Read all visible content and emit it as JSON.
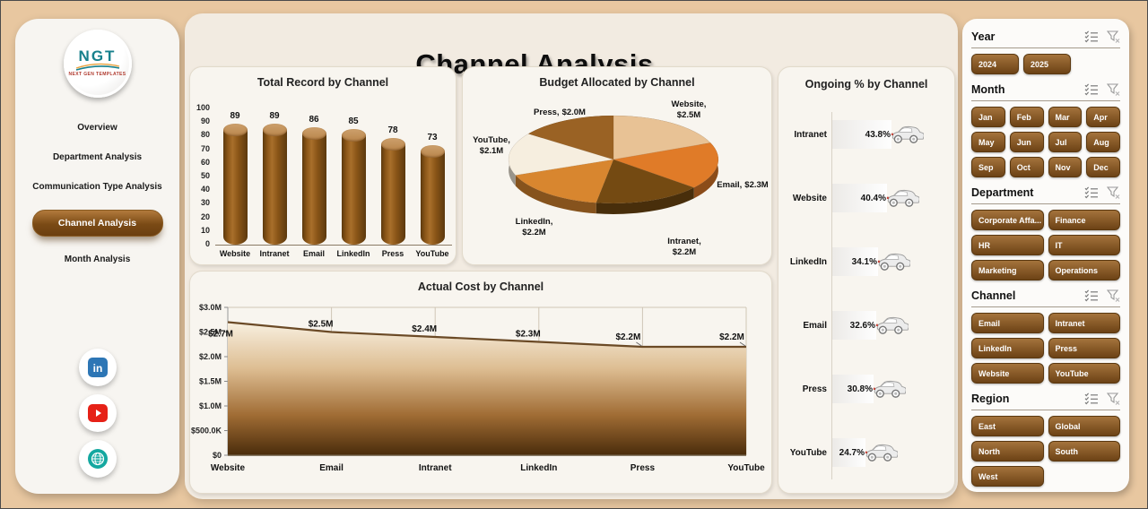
{
  "title": "Channel Analysis",
  "sidebar": {
    "logo_text": "NGT",
    "logo_subtext": "NEXT GEN TEMPLATES",
    "items": [
      {
        "label": "Overview",
        "active": false
      },
      {
        "label": "Department Analysis",
        "active": false
      },
      {
        "label": "Communication Type Analysis",
        "active": false
      },
      {
        "label": "Channel Analysis",
        "active": true
      },
      {
        "label": "Month Analysis",
        "active": false
      }
    ],
    "socials": [
      "linkedin",
      "youtube",
      "website"
    ]
  },
  "chart_data": [
    {
      "type": "bar",
      "title": "Total Record by Channel",
      "categories": [
        "Website",
        "Intranet",
        "Email",
        "LinkedIn",
        "Press",
        "YouTube"
      ],
      "values": [
        89,
        89,
        86,
        85,
        78,
        73
      ],
      "ylim": [
        0,
        100
      ],
      "yticks": [
        100,
        90,
        80,
        70,
        60,
        50,
        40,
        30,
        20,
        10,
        0
      ]
    },
    {
      "type": "pie",
      "title": "Budget Allocated by Channel",
      "slices": [
        {
          "name": "Website",
          "label": "$2.5M",
          "value": 2.5,
          "color": "#e8c295"
        },
        {
          "name": "Email",
          "label": "$2.3M",
          "value": 2.3,
          "color": "#e07b28"
        },
        {
          "name": "Intranet",
          "label": "$2.2M",
          "value": 2.2,
          "color": "#744a12"
        },
        {
          "name": "LinkedIn",
          "label": "$2.2M",
          "value": 2.2,
          "color": "#d8862f"
        },
        {
          "name": "YouTube",
          "label": "$2.1M",
          "value": 2.1,
          "color": "#f6eedf"
        },
        {
          "name": "Press",
          "label": "$2.0M",
          "value": 2.0,
          "color": "#9a6224"
        }
      ]
    },
    {
      "type": "area",
      "title": "Actual Cost by Channel",
      "categories": [
        "Website",
        "Email",
        "Intranet",
        "LinkedIn",
        "Press",
        "YouTube"
      ],
      "values": [
        2.7,
        2.5,
        2.4,
        2.3,
        2.2,
        2.2
      ],
      "labels": [
        "$2.7M",
        "$2.5M",
        "$2.4M",
        "$2.3M",
        "$2.2M",
        "$2.2M"
      ],
      "yticks": [
        "$3.0M",
        "$2.5M",
        "$2.0M",
        "$1.5M",
        "$1.0M",
        "$500.0K",
        "$0"
      ],
      "ylim": [
        0,
        3
      ]
    },
    {
      "type": "bar",
      "orientation": "horizontal",
      "title": "Ongoing % by Channel",
      "categories": [
        "Intranet",
        "Website",
        "LinkedIn",
        "Email",
        "Press",
        "YouTube"
      ],
      "values": [
        43.8,
        40.4,
        34.1,
        32.6,
        30.8,
        24.7
      ],
      "labels": [
        "43.8%",
        "40.4%",
        "34.1%",
        "32.6%",
        "30.8%",
        "24.7%"
      ]
    }
  ],
  "slicers": [
    {
      "title": "Year",
      "options": [
        "2024",
        "2025"
      ]
    },
    {
      "title": "Month",
      "options": [
        "Jan",
        "Feb",
        "Mar",
        "Apr",
        "May",
        "Jun",
        "Jul",
        "Aug",
        "Sep",
        "Oct",
        "Nov",
        "Dec"
      ]
    },
    {
      "title": "Department",
      "options": [
        "Corporate Affa...",
        "Finance",
        "HR",
        "IT",
        "Marketing",
        "Operations"
      ]
    },
    {
      "title": "Channel",
      "options": [
        "Email",
        "Intranet",
        "LinkedIn",
        "Press",
        "Website",
        "YouTube"
      ]
    },
    {
      "title": "Region",
      "options": [
        "East",
        "Global",
        "North",
        "South",
        "West"
      ]
    }
  ],
  "colors": {
    "accent_brown": "#7a4a15",
    "button_gradient_top": "#a4733c",
    "button_gradient_bottom": "#6c4215",
    "outer_background": "#e8c7a0",
    "panel_background": "#f2ebe1",
    "card_background": "#f8f5ef"
  }
}
